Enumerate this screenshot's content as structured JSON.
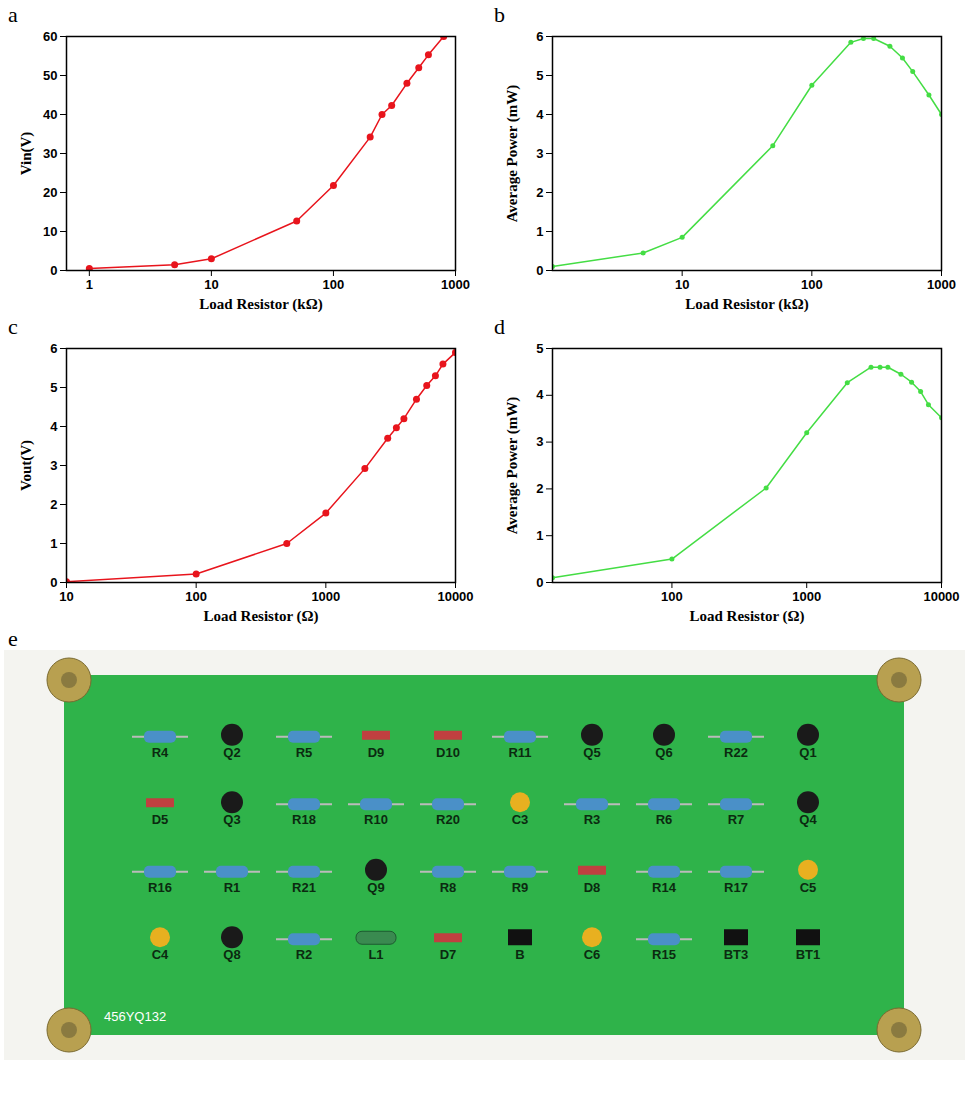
{
  "chart_data": [
    {
      "panel": "a",
      "type": "line",
      "xlabel": "Load Resistor (kΩ)",
      "ylabel": "Vin(V)",
      "log": "x",
      "grid": false,
      "color": "#e8141c",
      "marker": "circle",
      "x": [
        1,
        5,
        10,
        50,
        100,
        200,
        250,
        300,
        400,
        500,
        600,
        800
      ],
      "values": [
        0.5,
        1.5,
        3,
        12.7,
        21.8,
        34.2,
        40,
        42.3,
        48,
        52,
        55.3,
        60
      ],
      "xlim": [
        0.65,
        1000
      ],
      "xticks": [
        1,
        10,
        100,
        1000
      ],
      "ylim": [
        0,
        60
      ],
      "yticks": [
        0,
        10,
        20,
        30,
        40,
        50,
        60
      ]
    },
    {
      "panel": "b",
      "type": "line",
      "xlabel": "Load Resistor (kΩ)",
      "ylabel": "Average Power (mW)",
      "log": "x",
      "grid": false,
      "color": "#44dd44",
      "marker": "circle",
      "x": [
        1,
        5,
        10,
        50,
        100,
        200,
        250,
        300,
        400,
        500,
        600,
        800,
        1000
      ],
      "values": [
        0.1,
        0.45,
        0.85,
        3.2,
        4.75,
        5.85,
        5.95,
        5.95,
        5.75,
        5.45,
        5.1,
        4.5,
        4.0
      ],
      "xlim": [
        1,
        1000
      ],
      "xticks": [
        10,
        100,
        1000
      ],
      "ylim": [
        0,
        6
      ],
      "yticks": [
        0,
        1,
        2,
        3,
        4,
        5,
        6
      ]
    },
    {
      "panel": "c",
      "type": "line",
      "xlabel": "Load Resistor (Ω)",
      "ylabel": "Vout(V)",
      "log": "x",
      "grid": false,
      "color": "#e8141c",
      "marker": "circle",
      "x": [
        10,
        100,
        500,
        1000,
        2000,
        3000,
        3500,
        4000,
        5000,
        6000,
        7000,
        8000,
        10000
      ],
      "values": [
        0.02,
        0.22,
        1.0,
        1.78,
        2.92,
        3.7,
        3.97,
        4.2,
        4.7,
        5.05,
        5.3,
        5.6,
        5.9
      ],
      "xlim": [
        10,
        10000
      ],
      "xticks": [
        10,
        100,
        1000,
        10000
      ],
      "ylim": [
        0,
        6
      ],
      "yticks": [
        0,
        1,
        2,
        3,
        4,
        5,
        6
      ]
    },
    {
      "panel": "d",
      "type": "line",
      "xlabel": "Load Resistor (Ω)",
      "ylabel": "Average Power (mW)",
      "log": "x",
      "grid": false,
      "color": "#44dd44",
      "marker": "circle",
      "x": [
        13,
        100,
        500,
        1000,
        2000,
        3000,
        3500,
        4000,
        5000,
        6000,
        7000,
        8000,
        10000
      ],
      "values": [
        0.1,
        0.5,
        2.02,
        3.2,
        4.27,
        4.6,
        4.6,
        4.6,
        4.45,
        4.28,
        4.08,
        3.8,
        3.52
      ],
      "xlim": [
        13,
        10000
      ],
      "xticks": [
        100,
        1000,
        10000
      ],
      "ylim": [
        0,
        5
      ],
      "yticks": [
        0,
        1,
        2,
        3,
        4,
        5
      ]
    }
  ],
  "photo": {
    "panel": "e",
    "board_text": "456YQ132",
    "component_labels": [
      "R4",
      "Q2",
      "R5",
      "D9",
      "D10",
      "R11",
      "Q5",
      "Q6",
      "R22",
      "Q1",
      "D5",
      "Q3",
      "R18",
      "R10",
      "R20",
      "C3",
      "R3",
      "R6",
      "R7",
      "Q4",
      "R16",
      "R1",
      "R21",
      "Q9",
      "R8",
      "R9",
      "D8",
      "R14",
      "R17",
      "C5",
      "C4",
      "Q8",
      "R2",
      "L1",
      "D7",
      "B",
      "C6",
      "R15",
      "BT3",
      "BT1"
    ]
  }
}
